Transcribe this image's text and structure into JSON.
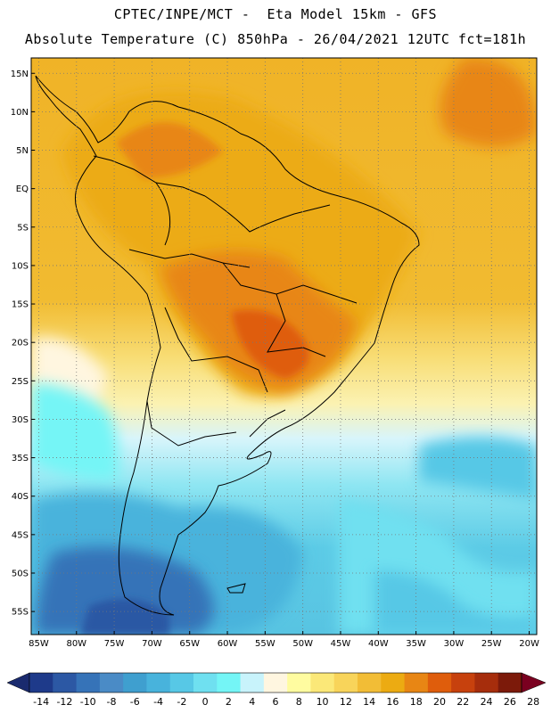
{
  "title": {
    "line1": "CPTEC/INPE/MCT -  Eta Model 15km - GFS",
    "line2": "Absolute Temperature (C) 850hPa - 26/04/2021 12UTC fct=181h"
  },
  "map": {
    "lat_labels": [
      "15N",
      "10N",
      "5N",
      "EQ",
      "5S",
      "10S",
      "15S",
      "20S",
      "25S",
      "30S",
      "35S",
      "40S",
      "45S",
      "50S",
      "55S"
    ],
    "lat_values": [
      15,
      10,
      5,
      0,
      -5,
      -10,
      -15,
      -20,
      -25,
      -30,
      -35,
      -40,
      -45,
      -50,
      -55
    ],
    "lon_labels": [
      "85W",
      "80W",
      "75W",
      "70W",
      "65W",
      "60W",
      "55W",
      "50W",
      "45W",
      "40W",
      "35W",
      "30W",
      "25W",
      "20W"
    ],
    "lon_values": [
      -85,
      -80,
      -75,
      -70,
      -65,
      -60,
      -55,
      -50,
      -45,
      -40,
      -35,
      -30,
      -25,
      -20
    ],
    "lat_range": [
      -58,
      17
    ],
    "lon_range": [
      -86,
      -19
    ]
  },
  "colorbar": {
    "labels": [
      "-14",
      "-12",
      "-10",
      "-8",
      "-6",
      "-4",
      "-2",
      "0",
      "2",
      "4",
      "6",
      "8",
      "10",
      "12",
      "14",
      "16",
      "18",
      "20",
      "22",
      "24",
      "26",
      "28"
    ],
    "colors": [
      "#1e3a8a",
      "#2c58a4",
      "#3673b8",
      "#4a8bc6",
      "#3f9fcf",
      "#48b3dc",
      "#57c8e6",
      "#6fe0f0",
      "#74f5f6",
      "#c8f3fb",
      "#fff6e0",
      "#fffca0",
      "#fbe878",
      "#f8d45a",
      "#f2bd36",
      "#ecab12",
      "#e88614",
      "#df5d0c",
      "#c7410d",
      "#a62d0c",
      "#7c1a0a"
    ],
    "under_color": "#1a2a6e",
    "over_color": "#7a0020"
  }
}
